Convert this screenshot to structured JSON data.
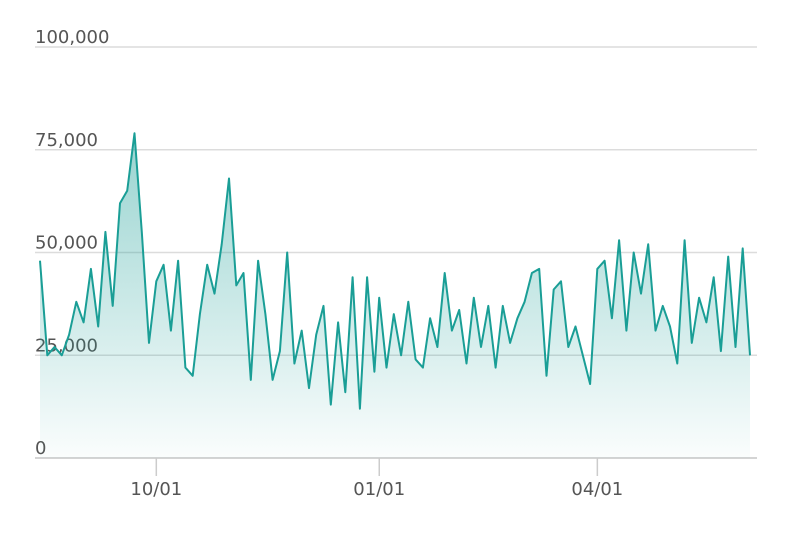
{
  "chart_data": {
    "type": "area",
    "x": [
      "08/14",
      "08/17",
      "08/20",
      "08/23",
      "08/26",
      "08/29",
      "09/01",
      "09/04",
      "09/07",
      "09/10",
      "09/13",
      "09/16",
      "09/19",
      "09/22",
      "09/25",
      "09/28",
      "10/01",
      "10/04",
      "10/07",
      "10/10",
      "10/13",
      "10/16",
      "10/19",
      "10/22",
      "10/25",
      "10/28",
      "10/31",
      "11/03",
      "11/06",
      "11/09",
      "11/12",
      "11/15",
      "11/18",
      "11/21",
      "11/24",
      "11/27",
      "11/30",
      "12/03",
      "12/06",
      "12/09",
      "12/12",
      "12/15",
      "12/18",
      "12/21",
      "12/24",
      "12/27",
      "12/30",
      "01/01",
      "01/04",
      "01/07",
      "01/10",
      "01/13",
      "01/16",
      "01/19",
      "01/22",
      "01/25",
      "01/28",
      "01/31",
      "02/03",
      "02/06",
      "02/09",
      "02/12",
      "02/15",
      "02/18",
      "02/21",
      "02/24",
      "02/27",
      "03/02",
      "03/05",
      "03/08",
      "03/11",
      "03/14",
      "03/17",
      "03/20",
      "03/23",
      "03/26",
      "03/29",
      "04/01",
      "04/04",
      "04/07",
      "04/10",
      "04/13",
      "04/16",
      "04/19",
      "04/22",
      "04/25",
      "04/28",
      "05/01",
      "05/04",
      "05/07",
      "05/10",
      "05/13",
      "05/16",
      "05/19",
      "05/22",
      "05/25",
      "05/28",
      "05/31",
      "06/03"
    ],
    "series": [
      {
        "color": "#1a9e96",
        "values": [
          48000,
          25000,
          27000,
          25000,
          30000,
          38000,
          33000,
          46000,
          32000,
          55000,
          37000,
          62000,
          65000,
          79000,
          55000,
          28000,
          43000,
          47000,
          31000,
          48000,
          22000,
          20000,
          35000,
          47000,
          40000,
          52000,
          68000,
          42000,
          45000,
          19000,
          48000,
          35000,
          19000,
          26000,
          50000,
          23000,
          31000,
          17000,
          30000,
          37000,
          13000,
          33000,
          16000,
          44000,
          12000,
          44000,
          21000,
          39000,
          22000,
          35000,
          25000,
          38000,
          24000,
          22000,
          34000,
          27000,
          45000,
          31000,
          36000,
          23000,
          39000,
          27000,
          37000,
          22000,
          37000,
          28000,
          34000,
          38000,
          45000,
          46000,
          20000,
          41000,
          43000,
          27000,
          32000,
          25000,
          18000,
          46000,
          48000,
          34000,
          53000,
          31000,
          50000,
          40000,
          52000,
          31000,
          37000,
          32000,
          23000,
          53000,
          28000,
          39000,
          33000,
          44000,
          26000,
          49000,
          27000,
          51000,
          25000
        ]
      }
    ],
    "xticks": [
      "10/01",
      "01/01",
      "04/01"
    ],
    "ylim": [
      0,
      100000
    ],
    "yticks": [
      0,
      {
        "value": 25000,
        "label": "25,000"
      },
      {
        "value": 50000,
        "label": "50,000"
      },
      {
        "value": 75000,
        "label": "75,000"
      },
      {
        "value": 100000,
        "label": "100,000"
      }
    ],
    "grid": true
  }
}
